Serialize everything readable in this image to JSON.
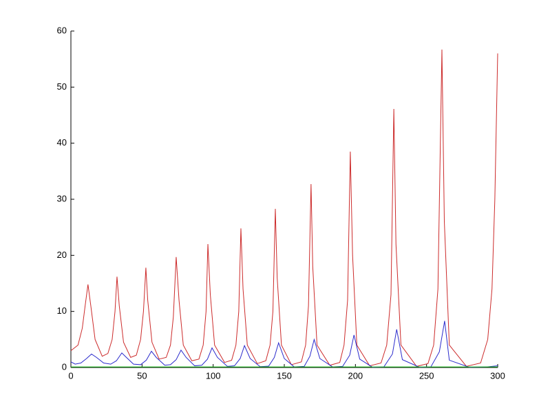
{
  "chart_data": {
    "type": "line",
    "series": [
      {
        "color": "#cc2a2a",
        "x": [
          0,
          5,
          8,
          10,
          12,
          14,
          17,
          22,
          26,
          29,
          31,
          32.4,
          34,
          37,
          42,
          46,
          49,
          51,
          52.7,
          54,
          57,
          62,
          67,
          70,
          72,
          74,
          76,
          79,
          85,
          90,
          93,
          95,
          96.3,
          98,
          101,
          108,
          113,
          116,
          118,
          119.5,
          121,
          124,
          131,
          137,
          140,
          142,
          143.7,
          145,
          148,
          155,
          162,
          165,
          167,
          168.8,
          170,
          173,
          182,
          189,
          192,
          194.5,
          196.4,
          198,
          201,
          210,
          218,
          222,
          225,
          227,
          228.5,
          232,
          243,
          251,
          255,
          258,
          260.8,
          262.5,
          266,
          278,
          288,
          293,
          296,
          298,
          300
        ],
        "values": [
          3,
          4,
          7,
          11,
          14.8,
          11,
          5,
          2,
          2.5,
          5,
          10,
          16.2,
          11,
          4.5,
          1.8,
          2.2,
          5,
          10,
          17.8,
          12,
          4.5,
          1.5,
          1.8,
          4,
          9,
          19.7,
          12,
          4,
          1.2,
          1.5,
          4,
          10,
          22,
          13,
          4,
          0.9,
          1.3,
          4,
          10,
          24.8,
          14,
          4,
          0.7,
          1.2,
          4,
          10,
          28.3,
          16,
          4,
          0.5,
          1,
          4,
          11,
          32.7,
          18,
          4,
          0.4,
          0.9,
          4,
          12,
          38.5,
          20,
          4,
          0.3,
          0.8,
          4,
          13,
          46.1,
          22,
          4,
          0.2,
          0.7,
          4,
          14,
          56.7,
          26,
          4,
          0.2,
          0.8,
          5,
          14,
          30,
          56
        ]
      },
      {
        "color": "#2a2acc",
        "x": [
          0,
          3,
          7,
          11,
          14.5,
          18,
          23,
          28,
          32,
          35.8,
          39,
          44,
          49,
          53,
          56.6,
          60,
          66,
          70,
          74,
          77.4,
          81,
          87,
          92,
          96,
          99.2,
          103,
          110,
          115,
          119,
          122,
          126,
          133,
          139,
          143,
          146,
          150,
          157,
          164,
          168,
          171,
          175,
          184,
          191,
          196,
          199,
          203,
          212,
          220,
          226,
          229,
          233,
          245,
          253,
          259,
          262.7,
          266,
          280,
          292,
          300
        ],
        "values": [
          1.0,
          0.6,
          0.8,
          1.6,
          2.4,
          1.8,
          0.8,
          0.6,
          1.2,
          2.6,
          1.8,
          0.6,
          0.5,
          1.3,
          2.9,
          1.8,
          0.4,
          0.5,
          1.4,
          3.1,
          1.8,
          0.3,
          0.4,
          1.5,
          3.5,
          1.8,
          0.2,
          0.3,
          1.6,
          3.9,
          1.6,
          0.15,
          0.25,
          1.8,
          4.4,
          1.6,
          0.1,
          0.2,
          2,
          5,
          1.6,
          0.1,
          0.2,
          2.2,
          5.8,
          1.5,
          0.05,
          0.1,
          2.4,
          6.8,
          1.4,
          0.05,
          0.1,
          2.8,
          8.3,
          1.3,
          0.05,
          0.1,
          0.3
        ]
      },
      {
        "color": "#22cc22",
        "x": [
          0,
          300
        ],
        "values": [
          0.1,
          0.1
        ]
      }
    ],
    "xlim": [
      0,
      300
    ],
    "xticks": [
      0,
      50,
      100,
      150,
      200,
      250,
      300
    ],
    "ylim": [
      0,
      60
    ],
    "yticks": [
      0,
      10,
      20,
      30,
      40,
      50,
      60
    ]
  }
}
